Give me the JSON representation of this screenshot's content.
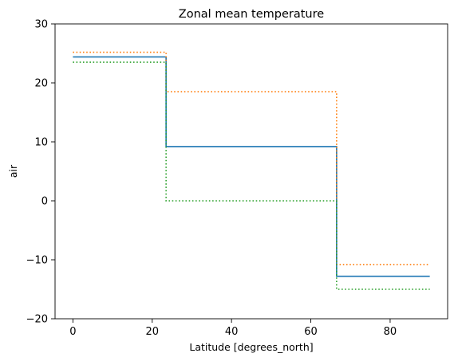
{
  "chart_data": {
    "type": "line",
    "title": "Zonal mean temperature",
    "xlabel": "Latitude [degrees_north]",
    "ylabel": "air",
    "xlim": [
      -4.5,
      94.5
    ],
    "ylim": [
      -20,
      30
    ],
    "xticks": [
      0,
      20,
      40,
      60,
      80
    ],
    "yticks": [
      -20,
      -10,
      0,
      10,
      20,
      30
    ],
    "grid": false,
    "legend": "none",
    "series": [
      {
        "style": "solid",
        "color": "#1f77b4",
        "x": [
          0,
          23.5,
          23.5,
          66.5,
          66.5,
          90
        ],
        "y": [
          24.4,
          24.4,
          9.2,
          9.2,
          -12.8,
          -12.8
        ]
      },
      {
        "style": "dotted",
        "color": "#ff7f0e",
        "x": [
          0,
          23.5,
          23.5,
          66.5,
          66.5,
          90
        ],
        "y": [
          25.2,
          25.2,
          18.5,
          18.5,
          -10.8,
          -10.8
        ]
      },
      {
        "style": "dotted",
        "color": "#2ca02c",
        "x": [
          0,
          23.5,
          23.5,
          66.5,
          66.5,
          90
        ],
        "y": [
          23.5,
          23.5,
          0,
          0,
          -15,
          -15
        ]
      }
    ]
  }
}
